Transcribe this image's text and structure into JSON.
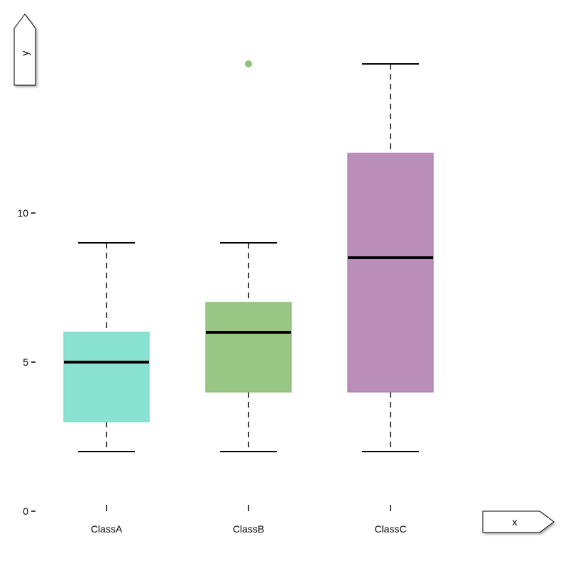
{
  "chart_data": {
    "type": "boxplot",
    "xlabel": "x",
    "ylabel": "y",
    "ylim": [
      0,
      16
    ],
    "yticks": [
      0,
      5,
      10,
      15
    ],
    "categories": [
      "ClassA",
      "ClassB",
      "ClassC"
    ],
    "boxes": [
      {
        "category": "ClassA",
        "whisker_low": 2,
        "q1": 3,
        "median": 5,
        "q3": 6,
        "whisker_high": 9,
        "outliers": [],
        "color": "#7fe0cc"
      },
      {
        "category": "ClassB",
        "whisker_low": 2,
        "q1": 4,
        "median": 6,
        "q3": 7,
        "whisker_high": 9,
        "outliers": [
          15
        ],
        "color": "#8fc17a"
      },
      {
        "category": "ClassC",
        "whisker_low": 2,
        "q1": 4,
        "median": 8.5,
        "q3": 12,
        "whisker_high": 15,
        "outliers": [],
        "color": "#b584b4"
      }
    ],
    "grid": false,
    "legend": "none"
  }
}
